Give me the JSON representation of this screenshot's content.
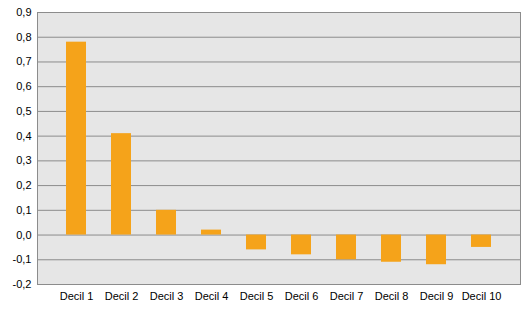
{
  "chart_data": {
    "type": "bar",
    "categories": [
      "Decil 1",
      "Decil 2",
      "Decil 3",
      "Decil 4",
      "Decil 5",
      "Decil 6",
      "Decil 7",
      "Decil 8",
      "Decil 9",
      "Decil 10"
    ],
    "values": [
      0.78,
      0.41,
      0.1,
      0.02,
      -0.06,
      -0.08,
      -0.1,
      -0.11,
      -0.12,
      -0.05
    ],
    "color": "#f5a31a",
    "ylim": [
      -0.2,
      0.9
    ],
    "yticks": [
      {
        "value": -0.2,
        "label": "-0,2"
      },
      {
        "value": -0.1,
        "label": "-0,1"
      },
      {
        "value": 0.0,
        "label": "0,0"
      },
      {
        "value": 0.1,
        "label": "0,1"
      },
      {
        "value": 0.2,
        "label": "0,2"
      },
      {
        "value": 0.3,
        "label": "0,3"
      },
      {
        "value": 0.4,
        "label": "0,4"
      },
      {
        "value": 0.5,
        "label": "0,5"
      },
      {
        "value": 0.6,
        "label": "0,6"
      },
      {
        "value": 0.7,
        "label": "0,7"
      },
      {
        "value": 0.8,
        "label": "0,8"
      },
      {
        "value": 0.9,
        "label": "0,9"
      }
    ],
    "grid": true
  }
}
